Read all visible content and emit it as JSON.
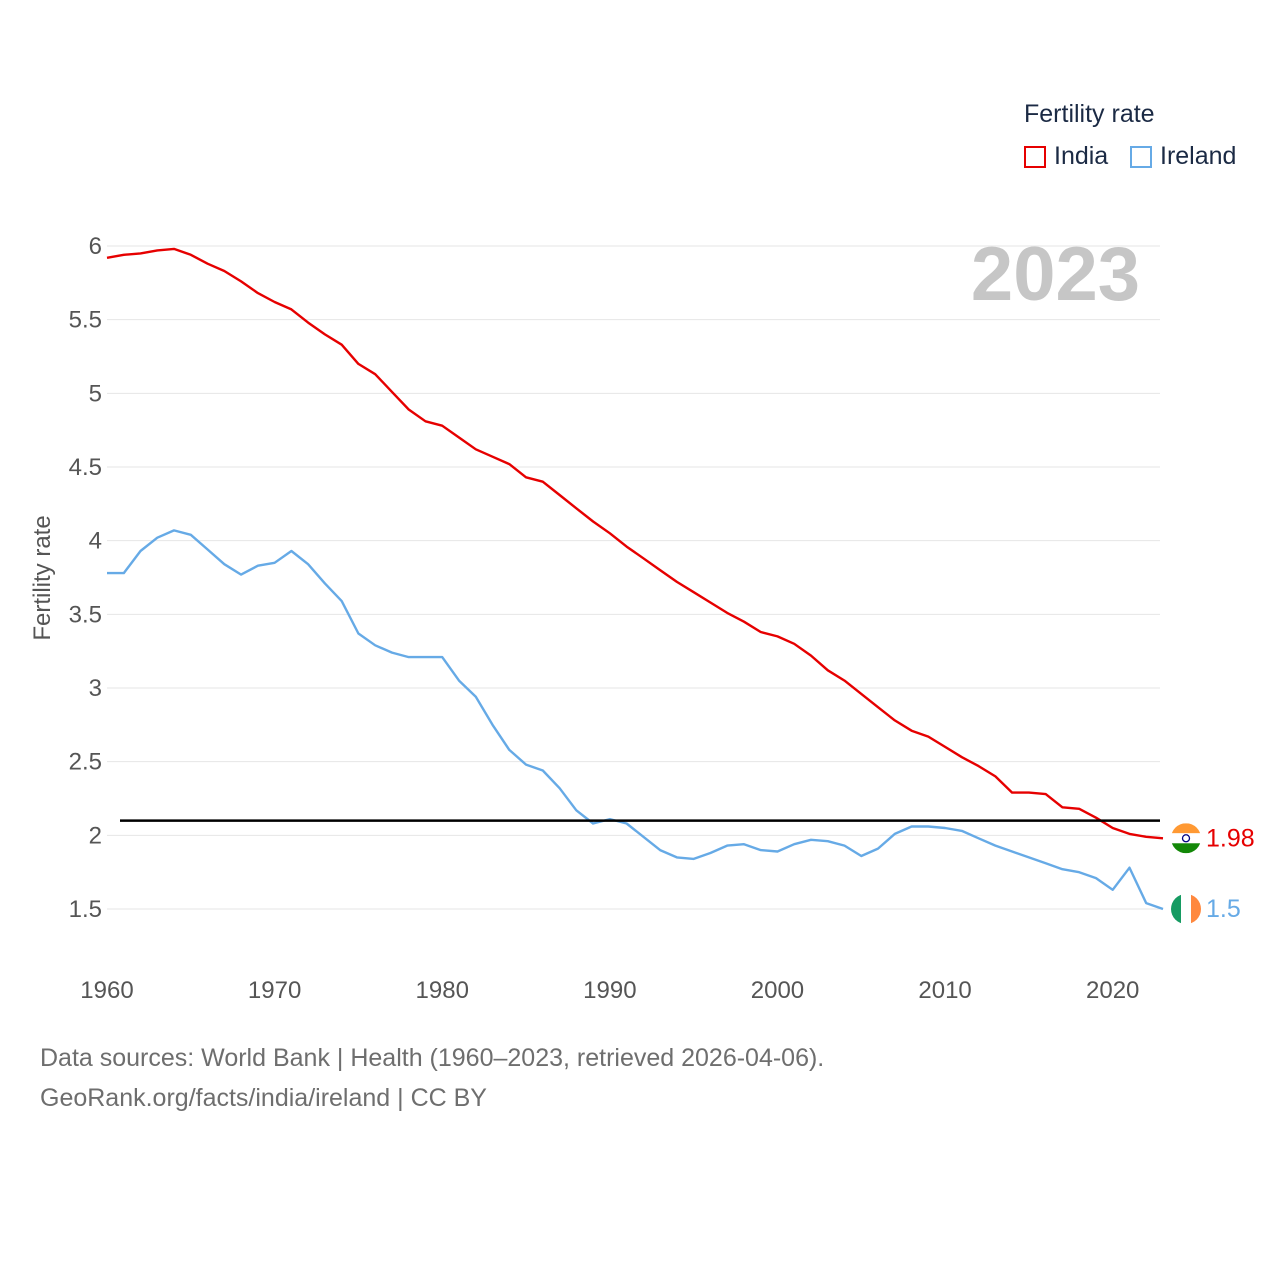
{
  "legend": {
    "title": "Fertility rate",
    "items": [
      {
        "name": "India",
        "color": "#e60000"
      },
      {
        "name": "Ireland",
        "color": "#66aae6"
      }
    ]
  },
  "footer": {
    "line1": "Data sources: World Bank | Health (1960–2023, retrieved 2026-04-06).",
    "line2": "GeoRank.org/facts/india/ireland | CC BY"
  },
  "chart_data": {
    "type": "line",
    "title": "Fertility rate",
    "xlabel": "",
    "ylabel": "Fertility rate",
    "year_label": "2023",
    "xlim": [
      1960,
      2023
    ],
    "ylim": [
      1.5,
      6
    ],
    "xticks": [
      1960,
      1970,
      1980,
      1990,
      2000,
      2010,
      2020
    ],
    "yticks": [
      1.5,
      2,
      2.5,
      3,
      3.5,
      4,
      4.5,
      5,
      5.5,
      6
    ],
    "reference_line": 2.1,
    "x": [
      1960,
      1961,
      1962,
      1963,
      1964,
      1965,
      1966,
      1967,
      1968,
      1969,
      1970,
      1971,
      1972,
      1973,
      1974,
      1975,
      1976,
      1977,
      1978,
      1979,
      1980,
      1981,
      1982,
      1983,
      1984,
      1985,
      1986,
      1987,
      1988,
      1989,
      1990,
      1991,
      1992,
      1993,
      1994,
      1995,
      1996,
      1997,
      1998,
      1999,
      2000,
      2001,
      2002,
      2003,
      2004,
      2005,
      2006,
      2007,
      2008,
      2009,
      2010,
      2011,
      2012,
      2013,
      2014,
      2015,
      2016,
      2017,
      2018,
      2019,
      2020,
      2021,
      2022,
      2023
    ],
    "series": [
      {
        "name": "India",
        "color": "#e60000",
        "end_label": "1.98",
        "values": [
          5.92,
          5.94,
          5.95,
          5.97,
          5.98,
          5.94,
          5.88,
          5.83,
          5.76,
          5.68,
          5.62,
          5.57,
          5.48,
          5.4,
          5.33,
          5.2,
          5.13,
          5.01,
          4.89,
          4.81,
          4.78,
          4.7,
          4.62,
          4.57,
          4.52,
          4.43,
          4.4,
          4.31,
          4.22,
          4.13,
          4.05,
          3.96,
          3.88,
          3.8,
          3.72,
          3.65,
          3.58,
          3.51,
          3.45,
          3.38,
          3.35,
          3.3,
          3.22,
          3.12,
          3.05,
          2.96,
          2.87,
          2.78,
          2.71,
          2.67,
          2.6,
          2.53,
          2.47,
          2.4,
          2.29,
          2.29,
          2.28,
          2.19,
          2.18,
          2.12,
          2.05,
          2.01,
          1.99,
          1.98
        ]
      },
      {
        "name": "Ireland",
        "color": "#66aae6",
        "end_label": "1.5",
        "values": [
          3.78,
          3.78,
          3.93,
          4.02,
          4.07,
          4.04,
          3.94,
          3.84,
          3.77,
          3.83,
          3.85,
          3.93,
          3.84,
          3.71,
          3.59,
          3.37,
          3.29,
          3.24,
          3.21,
          3.21,
          3.21,
          3.05,
          2.94,
          2.75,
          2.58,
          2.48,
          2.44,
          2.32,
          2.17,
          2.08,
          2.11,
          2.08,
          1.99,
          1.9,
          1.85,
          1.84,
          1.88,
          1.93,
          1.94,
          1.9,
          1.89,
          1.94,
          1.97,
          1.96,
          1.93,
          1.86,
          1.91,
          2.01,
          2.06,
          2.06,
          2.05,
          2.03,
          1.98,
          1.93,
          1.89,
          1.85,
          1.81,
          1.77,
          1.75,
          1.71,
          1.63,
          1.78,
          1.54,
          1.5
        ]
      }
    ]
  }
}
